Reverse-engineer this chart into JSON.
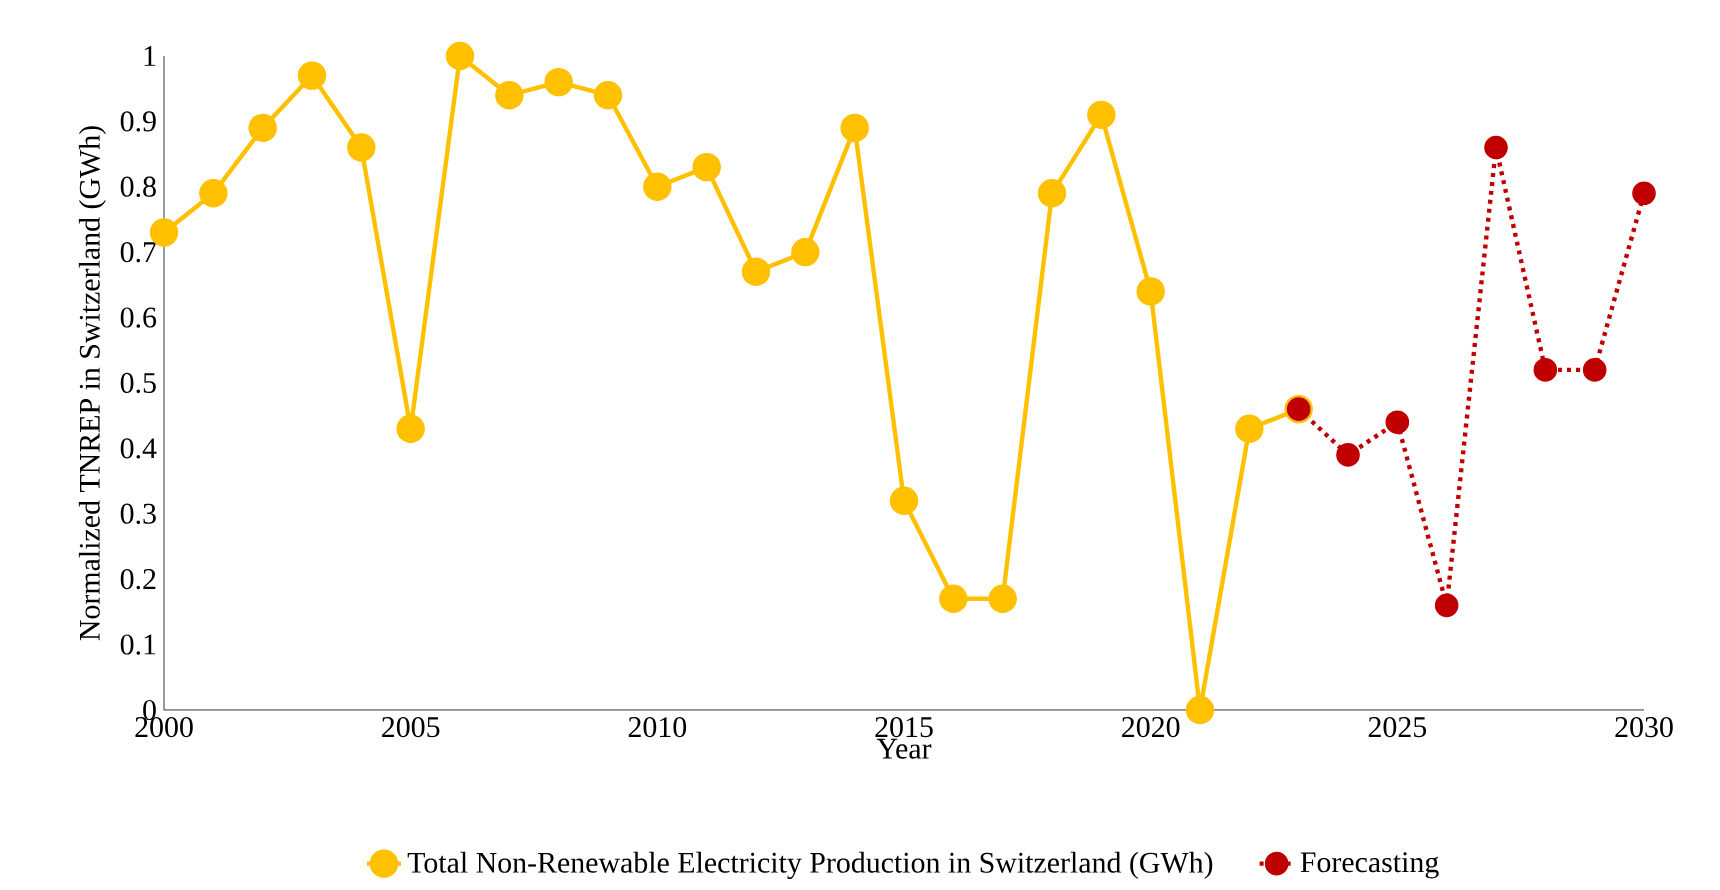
{
  "chart_data": {
    "type": "line",
    "xlabel": "Year",
    "ylabel": "Normalized TNREP in Switzerland (GWh)",
    "x": [
      2000,
      2001,
      2002,
      2003,
      2004,
      2005,
      2006,
      2007,
      2008,
      2009,
      2010,
      2011,
      2012,
      2013,
      2014,
      2015,
      2016,
      2017,
      2018,
      2019,
      2020,
      2021,
      2022,
      2023
    ],
    "series": [
      {
        "name": "Total Non-Renewable Electricity Production in Switzerland (GWh)",
        "color": "#ffc000",
        "line_style": "solid",
        "values": [
          0.73,
          0.79,
          0.89,
          0.97,
          0.86,
          0.43,
          1.0,
          0.94,
          0.96,
          0.94,
          0.8,
          0.83,
          0.67,
          0.7,
          0.89,
          0.32,
          0.17,
          0.17,
          0.79,
          0.91,
          0.64,
          0.0,
          0.43,
          0.46
        ]
      },
      {
        "name": "Forecasting",
        "color": "#c00000",
        "line_style": "dotted",
        "x": [
          2023,
          2024,
          2025,
          2026,
          2027,
          2028,
          2029,
          2030
        ],
        "values": [
          0.46,
          0.39,
          0.44,
          0.16,
          0.86,
          0.52,
          0.52,
          0.79
        ]
      }
    ],
    "xlim": [
      2000,
      2030
    ],
    "xticks": [
      2000,
      2005,
      2010,
      2015,
      2020,
      2025,
      2030
    ],
    "ylim": [
      0,
      1
    ],
    "yticks": [
      0,
      0.1,
      0.2,
      0.3,
      0.4,
      0.5,
      0.6,
      0.7,
      0.8,
      0.9,
      1
    ],
    "grid": false,
    "legend": "bottom",
    "marker": "circle"
  }
}
